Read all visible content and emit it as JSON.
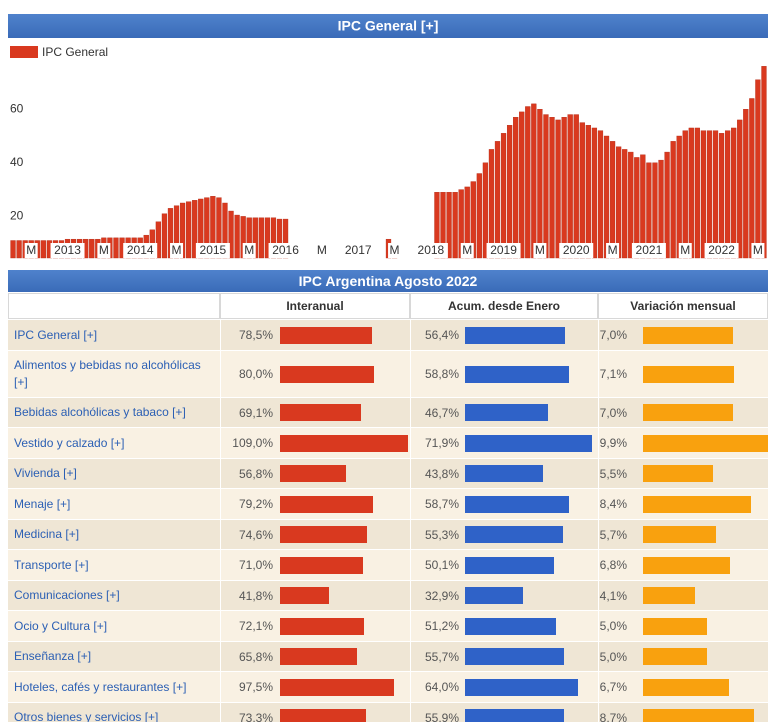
{
  "chart_data": {
    "type": "bar",
    "title": "IPC General [+]",
    "series": [
      {
        "name": "IPC General",
        "color": "#d9391f",
        "values": [
          11,
          11,
          11,
          11,
          11,
          11,
          11,
          11,
          11,
          11.5,
          11.5,
          11.5,
          11.5,
          11.5,
          11.5,
          12,
          12,
          12,
          12,
          12,
          12,
          12,
          13,
          15,
          18,
          21,
          23,
          24,
          25,
          25.5,
          26,
          26.5,
          27,
          27.5,
          27,
          25,
          22,
          20.5,
          20,
          19.5,
          19.5,
          19.5,
          19.5,
          19.5,
          19,
          19,
          null,
          null,
          null,
          null,
          null,
          null,
          null,
          null,
          null,
          null,
          null,
          null,
          null,
          null,
          null,
          null,
          11.5,
          8,
          null,
          null,
          null,
          null,
          null,
          null,
          29,
          29,
          29,
          29,
          30,
          31,
          33,
          36,
          40,
          45,
          48,
          51,
          54,
          57,
          59,
          61,
          62,
          60,
          58,
          57,
          56,
          57,
          58,
          58,
          55,
          54,
          53,
          52,
          50,
          48,
          46,
          45,
          44,
          42,
          43,
          40,
          40,
          41,
          44,
          48,
          50,
          52,
          53,
          53,
          52,
          52,
          52,
          51,
          52,
          53,
          56,
          60,
          64,
          71,
          76
        ]
      }
    ],
    "categories": [
      null,
      null,
      null,
      "M",
      null,
      null,
      null,
      null,
      null,
      "2013",
      null,
      null,
      null,
      null,
      null,
      "M",
      null,
      null,
      null,
      null,
      null,
      "2014",
      null,
      null,
      null,
      null,
      null,
      "M",
      null,
      null,
      null,
      null,
      null,
      "2015",
      null,
      null,
      null,
      null,
      null,
      "M",
      null,
      null,
      null,
      null,
      null,
      "2016",
      null,
      null,
      null,
      null,
      null,
      "M",
      null,
      null,
      null,
      null,
      null,
      "2017",
      null,
      null,
      null,
      null,
      null,
      "M",
      null,
      null,
      null,
      null,
      null,
      "2018",
      null,
      null,
      null,
      null,
      null,
      "M",
      null,
      null,
      null,
      null,
      null,
      "2019",
      null,
      null,
      null,
      null,
      null,
      "M",
      null,
      null,
      null,
      null,
      null,
      "2020",
      null,
      null,
      null,
      null,
      null,
      "M",
      null,
      null,
      null,
      null,
      null,
      "2021",
      null,
      null,
      null,
      null,
      null,
      "M",
      null,
      null,
      null,
      null,
      null,
      "2022",
      null,
      null,
      null,
      null,
      null,
      "M",
      null
    ],
    "ylim": [
      4.5,
      86.5
    ],
    "yticks": [
      20,
      40,
      60
    ],
    "legend": "top-left",
    "grid": false
  },
  "table": {
    "title": "IPC Argentina Agosto 2022",
    "columns": [
      "Interanual",
      "Acum. desde Enero",
      "Variación mensual"
    ],
    "colors": [
      "#d9391f",
      "#2f62c8",
      "#f9a10e"
    ],
    "rows": [
      {
        "name": "IPC General [+]",
        "cells": [
          {
            "value": 78.5,
            "label": "78,5%"
          },
          {
            "value": 56.4,
            "label": "56,4%"
          },
          {
            "value": 7.0,
            "label": "7,0%"
          }
        ]
      },
      {
        "name": "Alimentos y bebidas no alcohólicas [+]",
        "cells": [
          {
            "value": 80.0,
            "label": "80,0%"
          },
          {
            "value": 58.8,
            "label": "58,8%"
          },
          {
            "value": 7.1,
            "label": "7,1%"
          }
        ]
      },
      {
        "name": "Bebidas alcohólicas y tabaco [+]",
        "cells": [
          {
            "value": 69.1,
            "label": "69,1%"
          },
          {
            "value": 46.7,
            "label": "46,7%"
          },
          {
            "value": 7.0,
            "label": "7,0%"
          }
        ]
      },
      {
        "name": "Vestido y calzado [+]",
        "cells": [
          {
            "value": 109.0,
            "label": "109,0%"
          },
          {
            "value": 71.9,
            "label": "71,9%"
          },
          {
            "value": 9.9,
            "label": "9,9%"
          }
        ]
      },
      {
        "name": "Vivienda [+]",
        "cells": [
          {
            "value": 56.8,
            "label": "56,8%"
          },
          {
            "value": 43.8,
            "label": "43,8%"
          },
          {
            "value": 5.5,
            "label": "5,5%"
          }
        ]
      },
      {
        "name": "Menaje [+]",
        "cells": [
          {
            "value": 79.2,
            "label": "79,2%"
          },
          {
            "value": 58.7,
            "label": "58,7%"
          },
          {
            "value": 8.4,
            "label": "8,4%"
          }
        ]
      },
      {
        "name": "Medicina [+]",
        "cells": [
          {
            "value": 74.6,
            "label": "74,6%"
          },
          {
            "value": 55.3,
            "label": "55,3%"
          },
          {
            "value": 5.7,
            "label": "5,7%"
          }
        ]
      },
      {
        "name": "Transporte [+]",
        "cells": [
          {
            "value": 71.0,
            "label": "71,0%"
          },
          {
            "value": 50.1,
            "label": "50,1%"
          },
          {
            "value": 6.8,
            "label": "6,8%"
          }
        ]
      },
      {
        "name": "Comunicaciones [+]",
        "cells": [
          {
            "value": 41.8,
            "label": "41,8%"
          },
          {
            "value": 32.9,
            "label": "32,9%"
          },
          {
            "value": 4.1,
            "label": "4,1%"
          }
        ]
      },
      {
        "name": "Ocio y Cultura [+]",
        "cells": [
          {
            "value": 72.1,
            "label": "72,1%"
          },
          {
            "value": 51.2,
            "label": "51,2%"
          },
          {
            "value": 5.0,
            "label": "5,0%"
          }
        ]
      },
      {
        "name": "Enseñanza [+]",
        "cells": [
          {
            "value": 65.8,
            "label": "65,8%"
          },
          {
            "value": 55.7,
            "label": "55,7%"
          },
          {
            "value": 5.0,
            "label": "5,0%"
          }
        ]
      },
      {
        "name": "Hoteles, cafés y restaurantes [+]",
        "cells": [
          {
            "value": 97.5,
            "label": "97,5%"
          },
          {
            "value": 64.0,
            "label": "64,0%"
          },
          {
            "value": 6.7,
            "label": "6,7%"
          }
        ]
      },
      {
        "name": "Otros bienes y servicios [+]",
        "cells": [
          {
            "value": 73.3,
            "label": "73,3%"
          },
          {
            "value": 55.9,
            "label": "55,9%"
          },
          {
            "value": 8.7,
            "label": "8,7%"
          }
        ]
      }
    ]
  }
}
